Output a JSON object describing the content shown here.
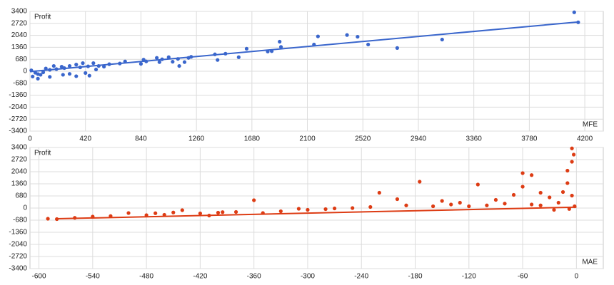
{
  "chart_data": [
    {
      "type": "scatter",
      "y_label": "Profit",
      "x_label": "MFE",
      "color": "#3a66cc",
      "grid": true,
      "xlim": [
        0,
        4340
      ],
      "xticks": [
        0,
        420,
        840,
        1260,
        1680,
        2100,
        2520,
        2940,
        3360,
        3780,
        4200
      ],
      "ylim": [
        -3400,
        3400
      ],
      "yticks": [
        3400,
        2720,
        2040,
        1360,
        680,
        0,
        -680,
        -1360,
        -2040,
        -2720,
        -3400
      ],
      "points": {
        "x": [
          4120,
          4150,
          3120,
          2780,
          2560,
          2480,
          2400,
          2180,
          2150,
          1890,
          1900,
          1830,
          1800,
          1640,
          1580,
          1480,
          1400,
          1420,
          1200,
          1220,
          1170,
          1130,
          1120,
          1080,
          1050,
          1000,
          980,
          960,
          880,
          860,
          840,
          720,
          680,
          600,
          560,
          520,
          480,
          440,
          400,
          380,
          350,
          300,
          260,
          240,
          200,
          180,
          150,
          120,
          100,
          80,
          60,
          40,
          20,
          10,
          450,
          350,
          250,
          150,
          60,
          300,
          500,
          420
        ],
        "y": [
          3350,
          2780,
          1800,
          1320,
          1520,
          1960,
          2060,
          1980,
          1520,
          1680,
          1380,
          1140,
          1120,
          1280,
          800,
          1000,
          960,
          640,
          760,
          820,
          520,
          300,
          700,
          540,
          800,
          680,
          520,
          760,
          560,
          660,
          420,
          560,
          440,
          400,
          260,
          300,
          460,
          280,
          460,
          220,
          380,
          300,
          180,
          260,
          120,
          300,
          80,
          160,
          -60,
          -200,
          -160,
          -80,
          -300,
          50,
          -250,
          -280,
          -200,
          -320,
          -420,
          -150,
          100,
          -100
        ]
      },
      "trend": {
        "x": [
          0,
          4150
        ],
        "y": [
          -20,
          2800
        ]
      }
    },
    {
      "type": "scatter",
      "y_label": "Profit",
      "x_label": "MAE",
      "color": "#dd3c14",
      "grid": true,
      "xlim": [
        -610,
        30
      ],
      "xticks": [
        -600,
        -540,
        -480,
        -420,
        -360,
        -300,
        -240,
        -180,
        -120,
        -60,
        0
      ],
      "ylim": [
        -3400,
        3400
      ],
      "yticks": [
        3400,
        2720,
        2040,
        1360,
        680,
        0,
        -680,
        -1360,
        -2040,
        -2720,
        -3400
      ],
      "points": {
        "x": [
          -5,
          -3,
          -5,
          -10,
          -60,
          -50,
          -175,
          -110,
          -60,
          -10,
          -220,
          -40,
          -70,
          -360,
          -200,
          -150,
          -130,
          -90,
          -30,
          -15,
          -5,
          -20,
          -50,
          -100,
          -160,
          -250,
          -300,
          -330,
          -350,
          -380,
          -420,
          -450,
          -460,
          -440,
          -480,
          -500,
          -520,
          -540,
          -560,
          -580,
          -590,
          -400,
          -280,
          -230,
          -190,
          -140,
          -80,
          -120,
          -40,
          -2,
          -8,
          -25,
          -310,
          -270,
          -470,
          -410,
          -395
        ],
        "y": [
          3350,
          3000,
          2600,
          2100,
          1960,
          1850,
          1480,
          1320,
          1200,
          1400,
          860,
          860,
          740,
          440,
          500,
          400,
          300,
          460,
          600,
          900,
          700,
          300,
          200,
          150,
          100,
          0,
          -100,
          -180,
          -280,
          -220,
          -300,
          -250,
          -380,
          -120,
          -400,
          -280,
          -450,
          -480,
          -550,
          -620,
          -600,
          -260,
          -60,
          60,
          150,
          200,
          250,
          100,
          150,
          100,
          -50,
          -100,
          -40,
          -20,
          -290,
          -420,
          -230
        ]
      },
      "trend": {
        "x": [
          -580,
          0
        ],
        "y": [
          -600,
          50
        ]
      }
    }
  ]
}
